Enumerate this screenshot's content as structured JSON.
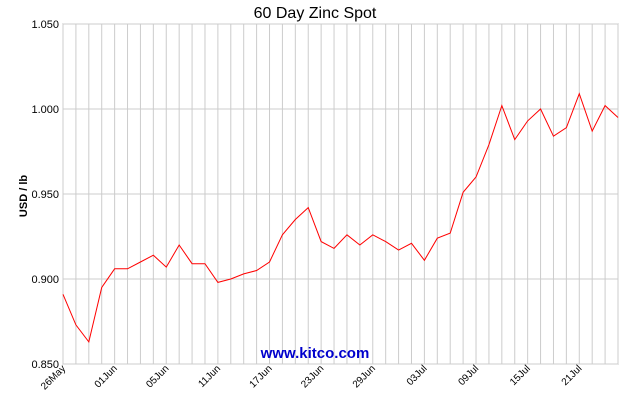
{
  "chart_data": {
    "type": "line",
    "title": "60 Day Zinc Spot",
    "ylabel": "USD / lb",
    "xlabel": "",
    "ylim": [
      0.85,
      1.05
    ],
    "yticks": [
      "0.850",
      "0.900",
      "0.950",
      "1.000",
      "1.050"
    ],
    "xtick_labels": [
      "26May",
      "01Jun",
      "05Jun",
      "11Jun",
      "17Jun",
      "23Jun",
      "29Jun",
      "03Jul",
      "09Jul",
      "15Jul",
      "21Jul"
    ],
    "grid": true,
    "series": [
      {
        "color": "#ff0000",
        "values": [
          0.891,
          0.873,
          0.863,
          0.895,
          0.906,
          0.906,
          0.91,
          0.914,
          0.907,
          0.92,
          0.909,
          0.909,
          0.898,
          0.9,
          0.903,
          0.905,
          0.91,
          0.926,
          0.935,
          0.942,
          0.922,
          0.918,
          0.926,
          0.92,
          0.926,
          0.922,
          0.917,
          0.921,
          0.911,
          0.924,
          0.927,
          0.951,
          0.96,
          0.979,
          1.002,
          0.982,
          0.993,
          1.0,
          0.984,
          0.989,
          1.009,
          0.987,
          1.002,
          0.995
        ]
      }
    ]
  },
  "watermark": "www.kitco.com"
}
